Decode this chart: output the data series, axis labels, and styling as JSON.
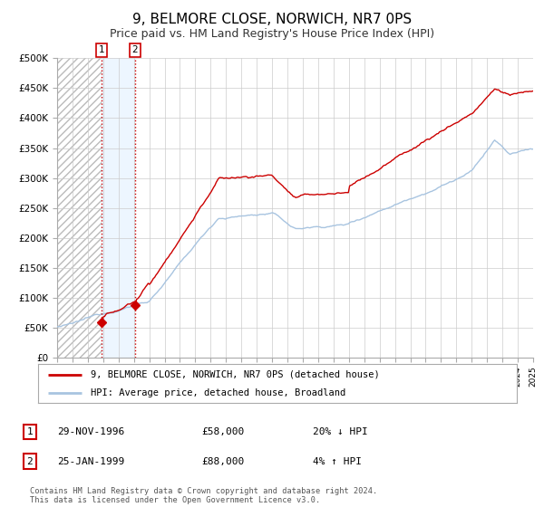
{
  "title": "9, BELMORE CLOSE, NORWICH, NR7 0PS",
  "subtitle": "Price paid vs. HM Land Registry's House Price Index (HPI)",
  "ylim": [
    0,
    500000
  ],
  "yticks": [
    0,
    50000,
    100000,
    150000,
    200000,
    250000,
    300000,
    350000,
    400000,
    450000,
    500000
  ],
  "ytick_labels": [
    "£0",
    "£50K",
    "£100K",
    "£150K",
    "£200K",
    "£250K",
    "£300K",
    "£350K",
    "£400K",
    "£450K",
    "£500K"
  ],
  "hpi_color": "#a8c4e0",
  "price_color": "#cc0000",
  "sale1_date": 1996.91,
  "sale1_price": 58000,
  "sale2_date": 1999.07,
  "sale2_price": 88000,
  "legend_label_price": "9, BELMORE CLOSE, NORWICH, NR7 0PS (detached house)",
  "legend_label_hpi": "HPI: Average price, detached house, Broadland",
  "annotation1_num": "1",
  "annotation1_date": "29-NOV-1996",
  "annotation1_price": "£58,000",
  "annotation1_hpi": "20% ↓ HPI",
  "annotation2_num": "2",
  "annotation2_date": "25-JAN-1999",
  "annotation2_price": "£88,000",
  "annotation2_hpi": "4% ↑ HPI",
  "footer": "Contains HM Land Registry data © Crown copyright and database right 2024.\nThis data is licensed under the Open Government Licence v3.0.",
  "background_color": "#ffffff",
  "plot_bg_color": "#ffffff",
  "grid_color": "#cccccc",
  "hatch_color": "#bbbbbb",
  "shade_color": "#ddeeff"
}
